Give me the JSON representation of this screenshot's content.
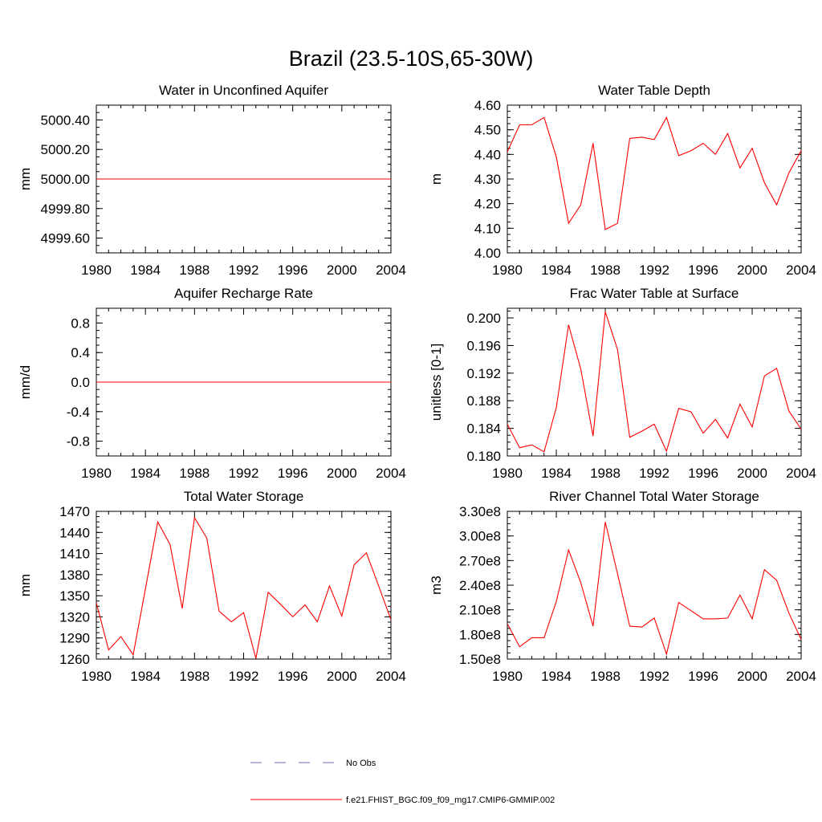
{
  "figure": {
    "title": "Brazil (23.5-10S,65-30W)",
    "series_color": "#ff0000",
    "obs_color": "#6b6bb8",
    "legend": {
      "obs_label": "No Obs",
      "model_label": "f.e21.FHIST_BGC.f09_f09_mg17.CMIP6-GMMIP.002"
    }
  },
  "chart_data": [
    {
      "type": "line",
      "title": "Water in Unconfined Aquifer",
      "ylabel": "mm",
      "xlim": [
        1980,
        2004
      ],
      "ylim": [
        4999.5,
        5000.5
      ],
      "xticks": [
        1980,
        1984,
        1988,
        1992,
        1996,
        2000,
        2004
      ],
      "yticks": [
        4999.6,
        4999.8,
        5000.0,
        5000.2,
        5000.4
      ],
      "ytick_labels": [
        "4999.60",
        "4999.80",
        "5000.00",
        "5000.20",
        "5000.40"
      ],
      "x": [
        1980,
        1981,
        1982,
        1983,
        1984,
        1985,
        1986,
        1987,
        1988,
        1989,
        1990,
        1991,
        1992,
        1993,
        1994,
        1995,
        1996,
        1997,
        1998,
        1999,
        2000,
        2001,
        2002,
        2003,
        2004
      ],
      "values": [
        5000,
        5000,
        5000,
        5000,
        5000,
        5000,
        5000,
        5000,
        5000,
        5000,
        5000,
        5000,
        5000,
        5000,
        5000,
        5000,
        5000,
        5000,
        5000,
        5000,
        5000,
        5000,
        5000,
        5000,
        5000
      ]
    },
    {
      "type": "line",
      "title": "Water Table Depth",
      "ylabel": "m",
      "xlim": [
        1980,
        2004
      ],
      "ylim": [
        4.0,
        4.6
      ],
      "xticks": [
        1980,
        1984,
        1988,
        1992,
        1996,
        2000,
        2004
      ],
      "yticks": [
        4.0,
        4.1,
        4.2,
        4.3,
        4.4,
        4.5,
        4.6
      ],
      "ytick_labels": [
        "4.00",
        "4.10",
        "4.20",
        "4.30",
        "4.40",
        "4.50",
        "4.60"
      ],
      "x": [
        1980,
        1981,
        1982,
        1983,
        1984,
        1985,
        1986,
        1987,
        1988,
        1989,
        1990,
        1991,
        1992,
        1993,
        1994,
        1995,
        1996,
        1997,
        1998,
        1999,
        2000,
        2001,
        2002,
        2003,
        2004
      ],
      "values": [
        4.41,
        4.52,
        4.52,
        4.55,
        4.39,
        4.12,
        4.195,
        4.445,
        4.095,
        4.12,
        4.465,
        4.47,
        4.46,
        4.55,
        4.395,
        4.415,
        4.445,
        4.4,
        4.485,
        4.345,
        4.425,
        4.285,
        4.195,
        4.325,
        4.415
      ]
    },
    {
      "type": "line",
      "title": "Aquifer Recharge Rate",
      "ylabel": "mm/d",
      "xlim": [
        1980,
        2004
      ],
      "ylim": [
        -1.0,
        1.0
      ],
      "xticks": [
        1980,
        1984,
        1988,
        1992,
        1996,
        2000,
        2004
      ],
      "yticks": [
        -0.8,
        -0.4,
        0.0,
        0.4,
        0.8
      ],
      "ytick_labels": [
        "-0.8",
        "-0.4",
        "0.0",
        "0.4",
        "0.8"
      ],
      "x": [
        1980,
        1981,
        1982,
        1983,
        1984,
        1985,
        1986,
        1987,
        1988,
        1989,
        1990,
        1991,
        1992,
        1993,
        1994,
        1995,
        1996,
        1997,
        1998,
        1999,
        2000,
        2001,
        2002,
        2003,
        2004
      ],
      "values": [
        0,
        0,
        0,
        0,
        0,
        0,
        0,
        0,
        0,
        0,
        0,
        0,
        0,
        0,
        0,
        0,
        0,
        0,
        0,
        0,
        0,
        0,
        0,
        0,
        0
      ]
    },
    {
      "type": "line",
      "title": "Frac Water Table at Surface",
      "ylabel": "unitless [0-1]",
      "xlim": [
        1980,
        2004
      ],
      "ylim": [
        0.18,
        0.2014
      ],
      "xticks": [
        1980,
        1984,
        1988,
        1992,
        1996,
        2000,
        2004
      ],
      "yticks": [
        0.18,
        0.184,
        0.188,
        0.192,
        0.196,
        0.2
      ],
      "ytick_labels": [
        "0.180",
        "0.184",
        "0.188",
        "0.192",
        "0.196",
        "0.200"
      ],
      "x": [
        1980,
        1981,
        1982,
        1983,
        1984,
        1985,
        1986,
        1987,
        1988,
        1989,
        1990,
        1991,
        1992,
        1993,
        1994,
        1995,
        1996,
        1997,
        1998,
        1999,
        2000,
        2001,
        2002,
        2003,
        2004
      ],
      "values": [
        0.1846,
        0.1812,
        0.1816,
        0.1806,
        0.187,
        0.199,
        0.1926,
        0.1829,
        0.2009,
        0.1954,
        0.1827,
        0.1836,
        0.1846,
        0.1807,
        0.1869,
        0.1864,
        0.1833,
        0.1853,
        0.1826,
        0.1875,
        0.1842,
        0.1916,
        0.1927,
        0.1865,
        0.1839
      ]
    },
    {
      "type": "line",
      "title": "Total Water Storage",
      "ylabel": "mm",
      "xlim": [
        1980,
        2004
      ],
      "ylim": [
        1260,
        1470
      ],
      "xticks": [
        1980,
        1984,
        1988,
        1992,
        1996,
        2000,
        2004
      ],
      "yticks": [
        1260,
        1290,
        1320,
        1350,
        1380,
        1410,
        1440,
        1470
      ],
      "ytick_labels": [
        "1260",
        "1290",
        "1320",
        "1350",
        "1380",
        "1410",
        "1440",
        "1470"
      ],
      "x": [
        1980,
        1981,
        1982,
        1983,
        1984,
        1985,
        1986,
        1987,
        1988,
        1989,
        1990,
        1991,
        1992,
        1993,
        1994,
        1995,
        1996,
        1997,
        1998,
        1999,
        2000,
        2001,
        2002,
        2003,
        2004
      ],
      "values": [
        1340,
        1273,
        1292,
        1266,
        1360,
        1455,
        1423,
        1332,
        1461,
        1432,
        1328,
        1313,
        1326,
        1261,
        1355,
        1338,
        1320,
        1337,
        1313,
        1364,
        1321,
        1394,
        1411,
        1364,
        1316
      ]
    },
    {
      "type": "line",
      "title": "River Channel Total Water Storage",
      "ylabel": "m3",
      "xlim": [
        1980,
        2004
      ],
      "ylim": [
        150000000,
        330000000
      ],
      "xticks": [
        1980,
        1984,
        1988,
        1992,
        1996,
        2000,
        2004
      ],
      "yticks": [
        150000000,
        180000000,
        210000000,
        240000000,
        270000000,
        300000000,
        330000000
      ],
      "ytick_labels": [
        "1.50e8",
        "1.80e8",
        "2.10e8",
        "2.40e8",
        "2.70e8",
        "3.00e8",
        "3.30e8"
      ],
      "x": [
        1980,
        1981,
        1982,
        1983,
        1984,
        1985,
        1986,
        1987,
        1988,
        1989,
        1990,
        1991,
        1992,
        1993,
        1994,
        1995,
        1996,
        1997,
        1998,
        1999,
        2000,
        2001,
        2002,
        2003,
        2004
      ],
      "values": [
        193000000,
        165000000,
        176000000,
        176000000,
        220000000,
        283000000,
        243000000,
        190000000,
        317000000,
        254000000,
        190000000,
        189000000,
        200000000,
        156000000,
        219000000,
        209000000,
        199000000,
        199000000,
        200000000,
        228000000,
        199000000,
        259000000,
        246000000,
        206000000,
        174000000
      ]
    }
  ]
}
